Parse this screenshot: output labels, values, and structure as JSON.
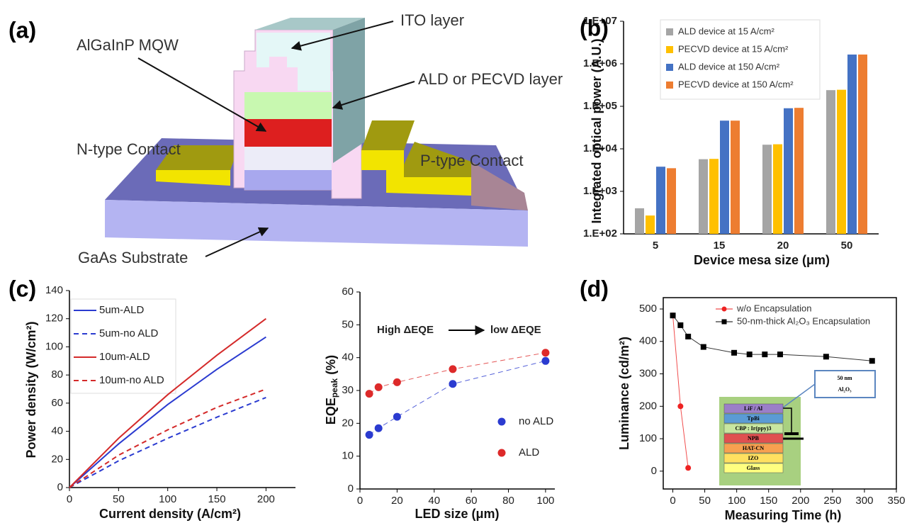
{
  "diagram": {
    "panel_label": "(a)",
    "labels": [
      "ITO layer",
      "AlGaInP MQW",
      "ALD or PECVD layer",
      "N-type Contact",
      "P-type Contact",
      "GaAs Substrate"
    ]
  },
  "chart_data": [
    {
      "type": "bar",
      "panel_label": "(b)",
      "xlabel": "Device mesa size (μm)",
      "ylabel": "Integrated optical power (A.U.)",
      "categories": [
        "5",
        "15",
        "20",
        "50"
      ],
      "log_y": true,
      "ylim": [
        100,
        10000000
      ],
      "yticks": [
        {
          "value": 100,
          "label": "1.E+02"
        },
        {
          "value": 1000,
          "label": "1.E+03"
        },
        {
          "value": 10000,
          "label": "1.E+04"
        },
        {
          "value": 100000,
          "label": "1.E+05"
        },
        {
          "value": 1000000,
          "label": "1.E+06"
        },
        {
          "value": 10000000,
          "label": "1.E+07"
        }
      ],
      "series": [
        {
          "name": "ALD device at 15 A/cm²",
          "color": "#a5a5a5",
          "values": [
            400,
            5700,
            12500,
            240000
          ]
        },
        {
          "name": "PECVD device at 15 A/cm²",
          "color": "#ffc000",
          "values": [
            270,
            5800,
            12800,
            245000
          ]
        },
        {
          "name": "ALD device at 150 A/cm²",
          "color": "#4472c4",
          "values": [
            3800,
            46000,
            90000,
            1650000
          ]
        },
        {
          "name": "PECVD device at 150 A/cm²",
          "color": "#ed7d31",
          "values": [
            3500,
            46000,
            92000,
            1650000
          ]
        }
      ]
    },
    {
      "type": "line",
      "panel_label": "(c)",
      "xlabel": "Current density (A/cm²)",
      "ylabel": "Power density (W/cm²)",
      "x": [
        0,
        50,
        100,
        150,
        200
      ],
      "xlim": [
        0,
        230
      ],
      "xticks": [
        0,
        50,
        100,
        150,
        200
      ],
      "ylim": [
        0,
        140
      ],
      "yticks": [
        0,
        20,
        40,
        60,
        80,
        100,
        120,
        140
      ],
      "series": [
        {
          "name": "5um-ALD",
          "color": "#2b3bd0",
          "dashed": false,
          "values": [
            0,
            31,
            59,
            84,
            107
          ]
        },
        {
          "name": "5um-no ALD",
          "color": "#2b3bd0",
          "dashed": true,
          "values": [
            0,
            19,
            35,
            50,
            64
          ]
        },
        {
          "name": "10um-ALD",
          "color": "#d42a2a",
          "dashed": false,
          "values": [
            0,
            35,
            66,
            94,
            120
          ]
        },
        {
          "name": "10um-no ALD",
          "color": "#d42a2a",
          "dashed": true,
          "values": [
            0,
            23,
            41,
            57,
            70
          ]
        }
      ]
    },
    {
      "type": "scatter",
      "xlabel": "LED size (μm)",
      "ylabel": "EQE",
      "ylabel_sub": "peak",
      "ylabel_unit": " (%)",
      "annotations": [
        "High ΔEQE",
        "low ΔEQE"
      ],
      "connect": "dashed",
      "x": [
        5,
        10,
        20,
        50,
        100
      ],
      "xlim": [
        0,
        105
      ],
      "xticks": [
        0,
        20,
        40,
        60,
        80,
        100
      ],
      "ylim": [
        0,
        60
      ],
      "yticks": [
        0,
        10,
        20,
        30,
        40,
        50,
        60
      ],
      "series": [
        {
          "name": "no ALD",
          "color": "#2b3bd0",
          "marker": "circle",
          "values": [
            16.5,
            18.5,
            22,
            32,
            39
          ]
        },
        {
          "name": "ALD",
          "color": "#dd2a2a",
          "marker": "circle",
          "values": [
            29,
            31,
            32.5,
            36.5,
            41.5
          ]
        }
      ]
    },
    {
      "type": "scatter",
      "panel_label": "(d)",
      "xlabel": "Measuring Time (h)",
      "ylabel": "Luminance (cd/m²)",
      "connect": "solid",
      "xlim": [
        -15,
        350
      ],
      "xticks": [
        0,
        50,
        100,
        150,
        200,
        250,
        300,
        350
      ],
      "ylim": [
        -55,
        535
      ],
      "yticks": [
        0,
        100,
        200,
        300,
        400,
        500
      ],
      "series": [
        {
          "name": "w/o Encapsulation",
          "color": "#ee2222",
          "marker": "circle",
          "x": [
            0,
            12,
            24
          ],
          "values": [
            480,
            200,
            10
          ]
        },
        {
          "name": "50-nm-thick Al₂O₃ Encapsulation",
          "color": "#000000",
          "marker": "square",
          "x": [
            0,
            12,
            24,
            48,
            96,
            120,
            144,
            168,
            240,
            312
          ],
          "values": [
            480,
            450,
            415,
            383,
            365,
            360,
            360,
            360,
            353,
            340
          ]
        }
      ],
      "inset": {
        "layers": [
          "LiF / Al",
          "TpBi",
          "CBP : Ir(ppy)3",
          "NPB",
          "HAT-CN",
          "IZO",
          "Glass"
        ],
        "callout": [
          "50 nm",
          "Al₂O₃"
        ]
      }
    }
  ]
}
